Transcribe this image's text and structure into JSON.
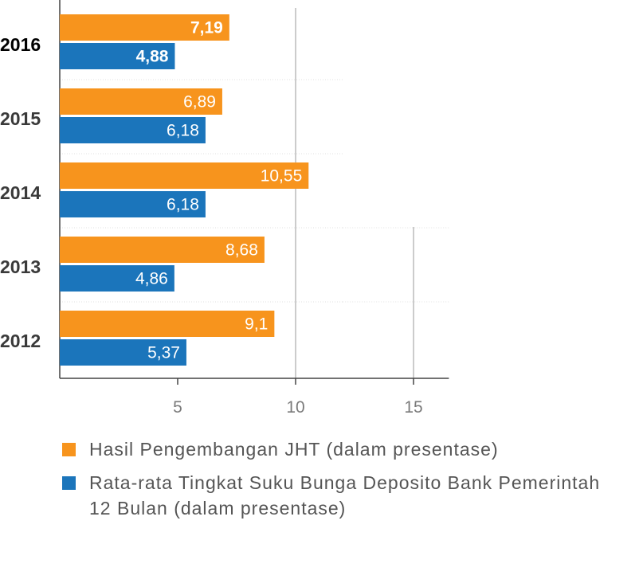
{
  "chart_data": {
    "type": "bar",
    "orientation": "horizontal",
    "categories": [
      "2016",
      "2015",
      "2014",
      "2013",
      "2012"
    ],
    "highlight_category": "2016",
    "series": [
      {
        "name": "Hasil Pengembangan JHT (dalam presentase)",
        "color": "#f7941d",
        "values": [
          7.19,
          6.89,
          10.55,
          8.68,
          9.1
        ],
        "labels": [
          "7,19",
          "6,89",
          "10,55",
          "8,68",
          "9,1"
        ]
      },
      {
        "name": "Rata-rata Tingkat Suku Bunga Deposito Bank Pemerintah 12 Bulan (dalam presentase)",
        "color": "#1b75bb",
        "values": [
          4.88,
          6.18,
          6.18,
          4.86,
          5.37
        ],
        "labels": [
          "4,88",
          "6,18",
          "6,18",
          "4,86",
          "5,37"
        ]
      }
    ],
    "xticks": [
      5,
      10,
      15
    ],
    "xlim": [
      0,
      16.5
    ],
    "grid": "vertical",
    "legend_position": "bottom"
  }
}
